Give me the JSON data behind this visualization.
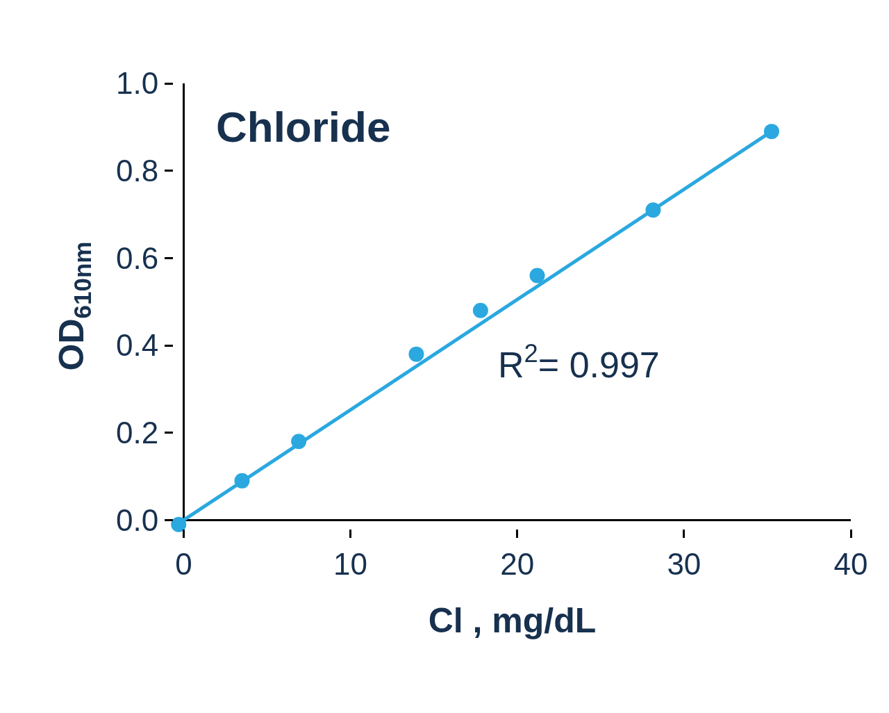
{
  "chart_data": {
    "type": "scatter",
    "title": "Chloride",
    "xlabel": "Cl , mg/dL",
    "ylabel": "OD$_{610nm}$",
    "annotations": [
      "R$^{2}$= 0.997"
    ],
    "series": [
      {
        "color": "#2aa8df",
        "x": [
          -0.3,
          3.5,
          6.9,
          13.95,
          17.8,
          21.2,
          28.15,
          35.25
        ],
        "values": [
          -0.01,
          0.09,
          0.18,
          0.38,
          0.48,
          0.56,
          0.71,
          0.89
        ],
        "marker": "circle"
      },
      {
        "type": "line",
        "color": "#2aa8df",
        "x": [
          0,
          35.25
        ],
        "values": [
          0,
          0.89
        ],
        "marker": "none",
        "line_style": "solid"
      }
    ],
    "xlim": [
      -0.6,
      40
    ],
    "ylim": [
      -0.02,
      1.0
    ],
    "xticks": [
      0,
      10,
      20,
      30,
      40
    ],
    "yticks": [
      {
        "value": 0,
        "label": "0.0"
      },
      0.2,
      0.4,
      0.6,
      0.8,
      {
        "value": 1,
        "label": "1.0"
      }
    ]
  }
}
